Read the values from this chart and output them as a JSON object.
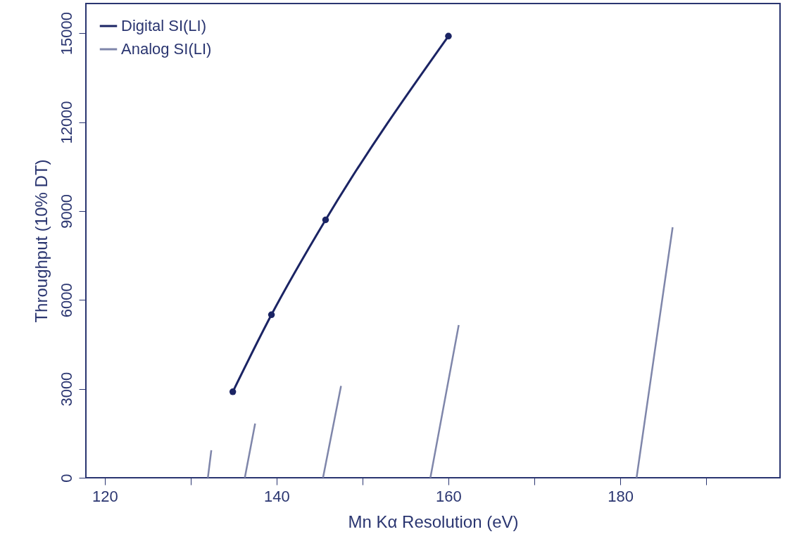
{
  "chart_data": {
    "type": "line",
    "xlabel": "Mn Kα Resolution (eV)",
    "ylabel": "Throughput (10% DT)",
    "series": [
      {
        "name": "Digital SI(LI)",
        "color": "#1b2464",
        "marker": "circle",
        "x": [
          134.9,
          139.4,
          145.7,
          160.0
        ],
        "values": [
          2900,
          5500,
          8700,
          14900
        ]
      },
      {
        "name": "Analog SI(LI)",
        "color": "#7f86aa",
        "marker": "none",
        "x": [
          132.0,
          132.4,
          134.0,
          136.3,
          137.5,
          140.0,
          145.4,
          147.5,
          150.0,
          157.9,
          161.2,
          170.0,
          181.9,
          186.1
        ],
        "values": [
          0,
          930,
          null,
          0,
          1830,
          null,
          0,
          3100,
          null,
          0,
          5150,
          null,
          0,
          8450
        ]
      }
    ],
    "xlim": [
      117.8,
      198.6
    ],
    "xticks": [
      120,
      {
        "value": 130,
        "label": null
      },
      140,
      {
        "value": 150,
        "label": null
      },
      160,
      {
        "value": 170,
        "label": null
      },
      180,
      {
        "value": 190,
        "label": null
      }
    ],
    "ylim": [
      0,
      16000
    ],
    "yticks": [
      0,
      3000,
      6000,
      9000,
      12000,
      15000
    ],
    "grid": false,
    "legend": "top left"
  }
}
